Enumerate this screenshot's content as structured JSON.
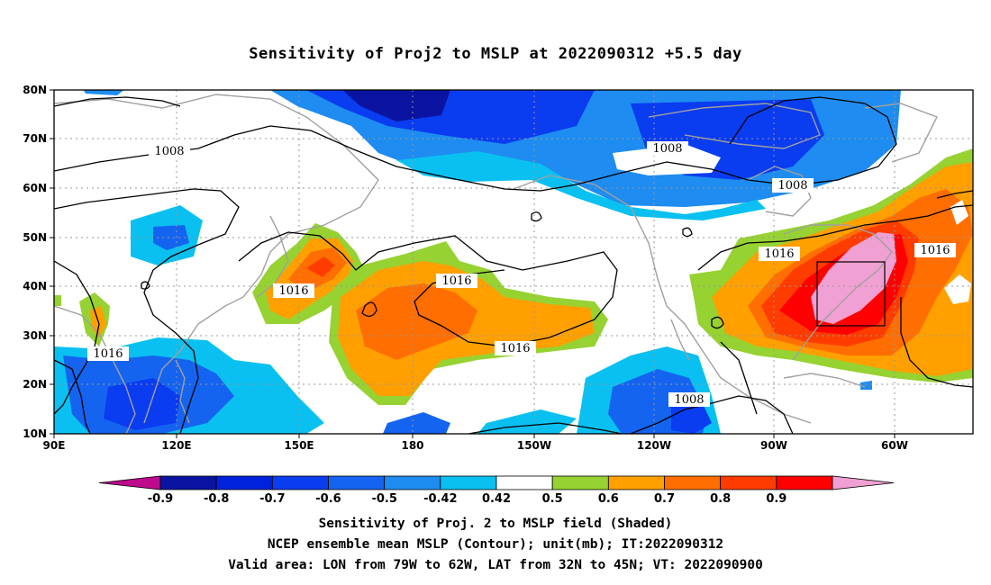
{
  "title": "Sensitivity of Proj2 to MSLP at 2022090312 +5.5 day",
  "axes": {
    "lat_labels": [
      "80N",
      "70N",
      "60N",
      "50N",
      "40N",
      "30N",
      "20N",
      "10N"
    ],
    "lon_labels": [
      "90E",
      "120E",
      "150E",
      "180",
      "150W",
      "120W",
      "90W",
      "60W"
    ],
    "lon_range": [
      "90E",
      "45W"
    ],
    "lat_range": [
      "10N",
      "80N"
    ],
    "grid": "dotted"
  },
  "colorbar": {
    "labels": [
      "-0.9",
      "-0.8",
      "-0.7",
      "-0.6",
      "-0.5",
      "-0.42",
      "0.42",
      "0.5",
      "0.6",
      "0.7",
      "0.8",
      "0.9"
    ],
    "colors": [
      "#be0a8c",
      "#0a14a0",
      "#0022dc",
      "#0a3cf0",
      "#1464f0",
      "#1e8cf0",
      "#0ac0f0",
      "#ffffff",
      "#96d232",
      "#ffa000",
      "#ff6e00",
      "#ff3c00",
      "#ff0000",
      "#f0a0d2"
    ]
  },
  "contours": {
    "unit": "mb",
    "labels": [
      {
        "text": "1008",
        "lon": 135,
        "lat": 67
      },
      {
        "text": "1008",
        "lon": -121,
        "lat": 68
      },
      {
        "text": "1008",
        "lon": -88,
        "lat": 61
      },
      {
        "text": "1008",
        "lon": -117,
        "lat": 16
      },
      {
        "text": "1016",
        "lon": 101,
        "lat": 26
      },
      {
        "text": "1016",
        "lon": 150,
        "lat": 39
      },
      {
        "text": "1016",
        "lon": -171,
        "lat": 41
      },
      {
        "text": "1016",
        "lon": -157,
        "lat": 27
      },
      {
        "text": "1016",
        "lon": -90,
        "lat": 47
      },
      {
        "text": "1016",
        "lon": -58,
        "lat": 48
      }
    ]
  },
  "valid_box": {
    "lon_min": -79,
    "lon_max": -62,
    "lat_min": 32,
    "lat_max": 45
  },
  "captions": [
    "Sensitivity of Proj. 2 to MSLP field (Shaded)",
    "NCEP ensemble mean MSLP (Contour); unit(mb); IT:2022090312",
    "Valid area: LON from 79W to 62W, LAT from 32N to 45N; VT: 2022090900"
  ]
}
